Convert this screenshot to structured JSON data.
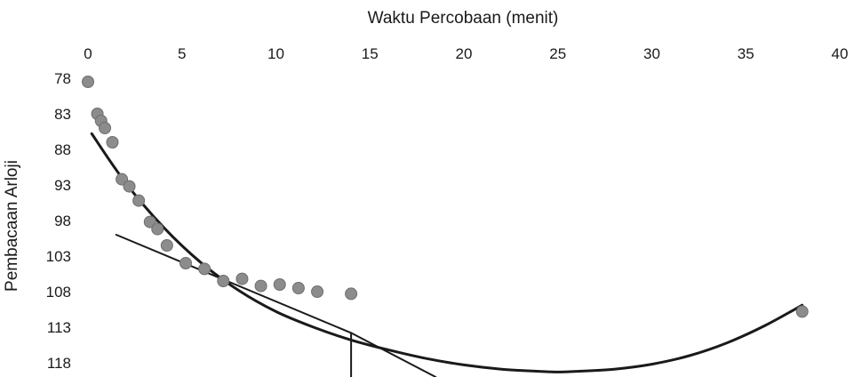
{
  "chart_data": {
    "type": "scatter",
    "title": "",
    "xlabel": "Waktu Percobaan (menit)",
    "ylabel": "Pembacaan Arloji",
    "x_axis_position": "top",
    "y_axis_inverted": true,
    "xlim": [
      0,
      40
    ],
    "ylim": [
      78,
      120
    ],
    "x_ticks": [
      "0",
      "5",
      "10",
      "15",
      "20",
      "25",
      "30",
      "35",
      "40"
    ],
    "y_ticks": [
      "78",
      "83",
      "88",
      "93",
      "98",
      "103",
      "108",
      "113",
      "118"
    ],
    "grid": false,
    "legend": "none",
    "colors": {
      "points": "#8c8c8c",
      "curve": "#1a1a1a",
      "text": "#1a1a1a"
    },
    "series": [
      {
        "type": "scatter",
        "x": [
          0,
          0.5,
          0.7,
          0.9,
          1.3,
          1.8,
          2.2,
          2.7,
          3.3,
          3.7,
          4.2,
          5.2,
          6.2,
          7.2,
          8.2,
          9.2,
          10.2,
          11.2,
          12.2,
          14.0,
          38.0
        ],
        "y": [
          78.5,
          83.0,
          84.0,
          85.0,
          87.0,
          92.2,
          93.2,
          95.2,
          98.2,
          99.2,
          101.5,
          104.0,
          104.8,
          106.5,
          106.2,
          107.2,
          107.0,
          107.5,
          108.0,
          108.3,
          110.8
        ]
      },
      {
        "type": "line",
        "style": "smooth",
        "x": [
          0.2,
          2,
          4,
          6,
          8,
          10,
          12,
          14,
          16,
          18,
          20,
          22,
          24,
          25,
          26,
          28,
          30,
          32,
          34,
          36,
          38
        ],
        "y": [
          85.8,
          92.7,
          98.9,
          103.9,
          107.8,
          110.8,
          113.0,
          114.8,
          116.2,
          117.4,
          118.3,
          118.9,
          119.2,
          119.3,
          119.2,
          118.9,
          118.2,
          117.0,
          115.2,
          112.8,
          109.9
        ]
      },
      {
        "type": "line",
        "style": "straight",
        "x": [
          1.5,
          14.0,
          18.5
        ],
        "y": [
          100.0,
          113.8,
          120.0
        ]
      },
      {
        "type": "line",
        "style": "straight",
        "x": [
          14.0,
          14.0
        ],
        "y": [
          113.8,
          120.0
        ]
      }
    ]
  }
}
